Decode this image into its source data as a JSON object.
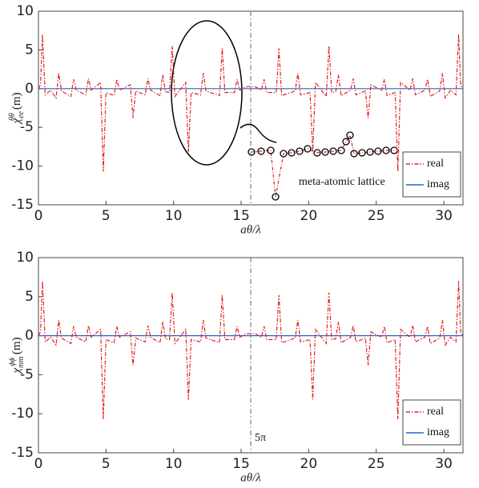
{
  "chart_data": [
    {
      "type": "line",
      "xlabel": "aθ/λ",
      "ylabel": {
        "symbol": "χ",
        "sub": "ee",
        "sup": "θθ",
        "unit": "(m)"
      },
      "xlim": [
        0,
        31.42
      ],
      "ylim": [
        -15,
        10
      ],
      "xticks": [
        0,
        5,
        10,
        15,
        20,
        25,
        30
      ],
      "yticks": [
        -15,
        -10,
        -5,
        0,
        5,
        10
      ],
      "grid": false,
      "legend": "lower right",
      "vline": {
        "value": 15.71
      },
      "annotation": "meta-atomic lattice",
      "series": [
        {
          "name": "real",
          "color": "#e0201b",
          "style": "dashdot",
          "x": [
            0,
            0.15,
            0.3,
            0.5,
            0.9,
            1.3,
            1.5,
            1.7,
            2.4,
            2.6,
            2.8,
            3.5,
            3.7,
            3.9,
            4.6,
            4.8,
            5.0,
            5.6,
            5.8,
            6.0,
            6.8,
            7.0,
            7.2,
            7.9,
            8.1,
            8.3,
            9.0,
            9.2,
            9.4,
            9.7,
            9.9,
            10.1,
            10.9,
            11.1,
            11.3,
            12.0,
            12.2,
            12.4,
            13.4,
            13.6,
            13.8,
            14.5,
            14.7,
            14.9,
            15.3,
            15.71,
            16.1,
            16.5,
            16.7,
            16.9,
            17.6,
            17.8,
            18.0,
            19.0,
            19.2,
            19.4,
            20.1,
            20.3,
            20.5,
            21.3,
            21.5,
            21.7,
            22.0,
            22.2,
            22.4,
            23.1,
            23.3,
            23.5,
            24.2,
            24.4,
            24.6,
            25.4,
            25.6,
            25.8,
            26.4,
            26.6,
            26.8,
            27.5,
            27.7,
            27.9,
            28.6,
            28.8,
            29.0,
            29.7,
            29.9,
            30.1,
            30.5,
            30.9,
            31.1,
            31.25,
            31.4
          ],
          "values": [
            0,
            0.5,
            7,
            -0.8,
            -0.2,
            -1.2,
            2,
            -0.3,
            -1,
            1.2,
            -0.2,
            -0.8,
            1.3,
            -0.2,
            0.8,
            -10.7,
            -0.5,
            -0.9,
            1.2,
            -0.2,
            0.5,
            -3.8,
            -0.3,
            -0.8,
            1.3,
            -0.2,
            -0.9,
            1.8,
            -0.4,
            -0.5,
            5.5,
            -1.0,
            0.8,
            -8.2,
            -0.5,
            -0.8,
            2.0,
            -0.3,
            -0.9,
            5.2,
            -0.5,
            -0.5,
            1.2,
            -0.2,
            0.2,
            0.3,
            0.2,
            -0.2,
            1.2,
            -0.5,
            -0.5,
            5.2,
            -0.9,
            -0.3,
            2.0,
            -0.8,
            -0.5,
            -8.2,
            0.8,
            -1.0,
            5.5,
            -0.5,
            -0.4,
            1.8,
            -0.9,
            -0.2,
            1.3,
            -0.8,
            -0.3,
            -3.8,
            0.5,
            -0.2,
            1.2,
            -0.9,
            -0.5,
            -10.7,
            0.8,
            -0.2,
            1.3,
            -0.8,
            -0.2,
            1.2,
            -1,
            -0.3,
            2,
            -1.2,
            -0.2,
            -0.8,
            7,
            0.5,
            0
          ]
        },
        {
          "name": "imag",
          "color": "#2a62c9",
          "style": "solid",
          "x": [
            0,
            31.42
          ],
          "values": [
            0,
            0
          ]
        }
      ]
    },
    {
      "type": "line",
      "xlabel": "aθ/λ",
      "ylabel": {
        "symbol": "χ",
        "sub": "mm",
        "sup": "ϕϕ",
        "unit": "(m)"
      },
      "xlim": [
        0,
        31.42
      ],
      "ylim": [
        -15,
        10
      ],
      "xticks": [
        0,
        5,
        10,
        15,
        20,
        25,
        30
      ],
      "yticks": [
        -15,
        -10,
        -5,
        0,
        5,
        10
      ],
      "grid": false,
      "legend": "lower right",
      "vline": {
        "value": 15.71,
        "label": "5π"
      },
      "series": [
        {
          "name": "real",
          "color": "#e0201b",
          "style": "dashdot",
          "x": [
            0,
            0.15,
            0.3,
            0.5,
            0.9,
            1.3,
            1.5,
            1.7,
            2.4,
            2.6,
            2.8,
            3.5,
            3.7,
            3.9,
            4.6,
            4.8,
            5.0,
            5.6,
            5.8,
            6.0,
            6.8,
            7.0,
            7.2,
            7.9,
            8.1,
            8.3,
            9.0,
            9.2,
            9.4,
            9.7,
            9.9,
            10.1,
            10.9,
            11.1,
            11.3,
            12.0,
            12.2,
            12.4,
            13.4,
            13.6,
            13.8,
            14.5,
            14.7,
            14.9,
            15.3,
            15.71,
            16.1,
            16.5,
            16.7,
            16.9,
            17.6,
            17.8,
            18.0,
            19.0,
            19.2,
            19.4,
            20.1,
            20.3,
            20.5,
            21.3,
            21.5,
            21.7,
            22.0,
            22.2,
            22.4,
            23.1,
            23.3,
            23.5,
            24.2,
            24.4,
            24.6,
            25.4,
            25.6,
            25.8,
            26.4,
            26.6,
            26.8,
            27.5,
            27.7,
            27.9,
            28.6,
            28.8,
            29.0,
            29.7,
            29.9,
            30.1,
            30.5,
            30.9,
            31.1,
            31.25,
            31.4
          ],
          "values": [
            0,
            0.5,
            7,
            -0.8,
            -0.2,
            -1.2,
            2,
            -0.3,
            -1,
            1.2,
            -0.2,
            -0.8,
            1.3,
            -0.2,
            0.8,
            -10.7,
            -0.5,
            -0.9,
            1.2,
            -0.2,
            0.5,
            -3.8,
            -0.3,
            -0.8,
            1.3,
            -0.2,
            -0.9,
            1.8,
            -0.4,
            -0.5,
            5.5,
            -1.0,
            0.8,
            -8.2,
            -0.5,
            -0.8,
            2.0,
            -0.3,
            -0.9,
            5.2,
            -0.5,
            -0.5,
            1.2,
            -0.2,
            0.2,
            0.3,
            0.2,
            -0.2,
            1.2,
            -0.5,
            -0.5,
            5.2,
            -0.9,
            -0.3,
            2.0,
            -0.8,
            -0.5,
            -8.2,
            0.8,
            -1.0,
            5.5,
            -0.5,
            -0.4,
            1.8,
            -0.9,
            -0.2,
            1.3,
            -0.8,
            -0.3,
            -3.8,
            0.5,
            -0.2,
            1.2,
            -0.9,
            -0.5,
            -10.7,
            0.8,
            -0.2,
            1.3,
            -0.8,
            -0.2,
            1.2,
            -1,
            -0.3,
            2,
            -1.2,
            -0.2,
            -0.8,
            7,
            0.5,
            0
          ]
        },
        {
          "name": "imag",
          "color": "#2a62c9",
          "style": "solid",
          "x": [
            0,
            31.42
          ],
          "values": [
            0,
            0
          ]
        }
      ]
    }
  ]
}
